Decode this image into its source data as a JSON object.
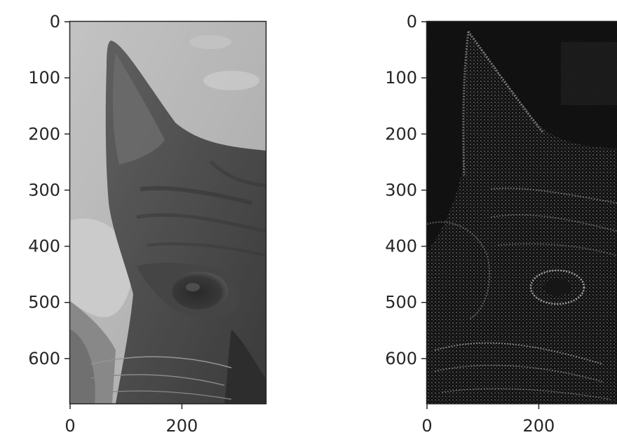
{
  "figure": {
    "panels": [
      {
        "name": "grayscale-cat-image",
        "image_kind": "grayscale photograph",
        "xticks": [
          "0",
          "200"
        ],
        "yticks": [
          "0",
          "100",
          "200",
          "300",
          "400",
          "500",
          "600"
        ],
        "xlim": [
          0,
          350
        ],
        "ylim": [
          680,
          0
        ]
      },
      {
        "name": "edge-filtered-cat-image",
        "image_kind": "edge-filtered",
        "xticks": [
          "0",
          "200"
        ],
        "yticks": [
          "0",
          "100",
          "200",
          "300",
          "400",
          "500",
          "600"
        ],
        "xlim": [
          0,
          350
        ],
        "ylim": [
          680,
          0
        ]
      }
    ]
  },
  "colors": {
    "axis": "#262626",
    "tick_text": "#262626",
    "left_sky": "#c8c8c8",
    "left_fur": "#4a4a4a",
    "right_background": "#050505",
    "right_edges": "#9a9a9a"
  }
}
